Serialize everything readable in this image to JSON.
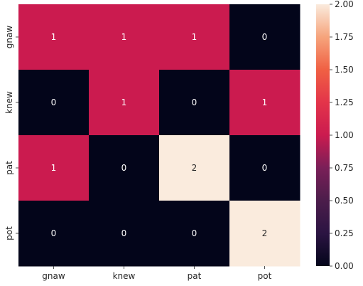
{
  "chart_data": {
    "type": "heatmap",
    "title": "",
    "xlabel": "",
    "ylabel": "",
    "x_categories": [
      "gnaw",
      "knew",
      "pat",
      "pot"
    ],
    "y_categories": [
      "gnaw",
      "knew",
      "pat",
      "pot"
    ],
    "values": [
      [
        1,
        1,
        1,
        0
      ],
      [
        0,
        1,
        0,
        1
      ],
      [
        1,
        0,
        2,
        0
      ],
      [
        0,
        0,
        0,
        2
      ]
    ],
    "colorbar": {
      "min": 0.0,
      "max": 2.0,
      "ticks": [
        "0.00",
        "0.25",
        "0.50",
        "0.75",
        "1.00",
        "1.25",
        "1.50",
        "1.75",
        "2.00"
      ],
      "colormap": "rocket"
    },
    "annotation_colors": {
      "dark_cell": "#ffffff",
      "light_cell": "#262626"
    }
  }
}
